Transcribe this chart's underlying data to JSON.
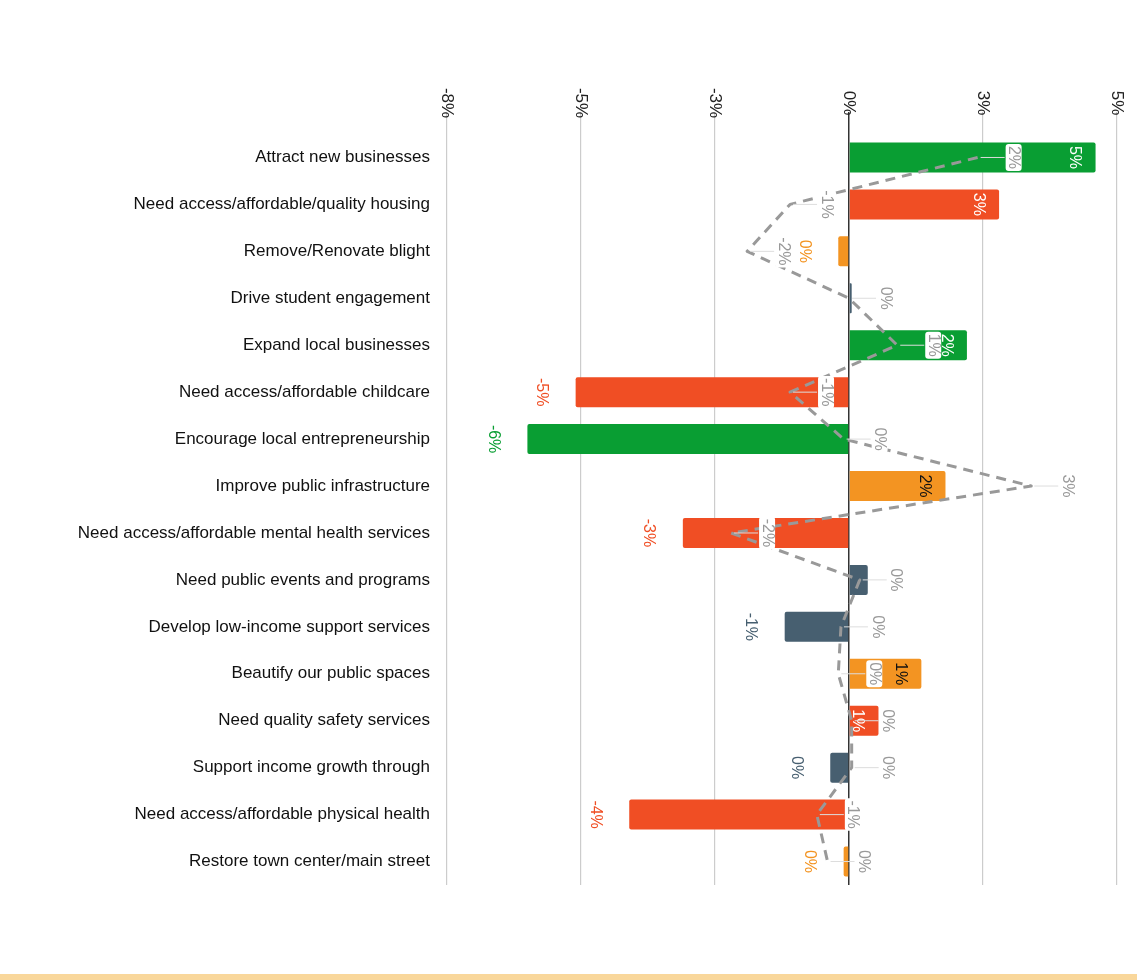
{
  "chart_data": {
    "type": "bar",
    "orientation": "horizontal",
    "categories": [
      "Attract new businesses",
      "Need access/affordable/quality housing",
      "Remove/Renovate blight",
      "Drive student engagement",
      "Expand local businesses",
      "Need access/affordable childcare",
      "Encourage local entrepreneurship",
      "Improve public infrastructure",
      "Need access/affordable mental health services",
      "Need public events and programs",
      "Develop low-income support services",
      "Beautify our public spaces",
      "Need quality safety services",
      "Support income growth through",
      "Need access/affordable physical health",
      "Restore town center/main street"
    ],
    "series": [
      {
        "colors": [
          "#099e33",
          "#f04e24",
          "#f39422",
          "#475f70",
          "#099e33",
          "#f04e24",
          "#099e33",
          "#f39422",
          "#f04e24",
          "#475f70",
          "#475f70",
          "#f39422",
          "#f04e24",
          "#475f70",
          "#f04e24",
          "#f39422"
        ],
        "values": [
          4.6,
          2.8,
          -0.2,
          0.05,
          2.2,
          -5.1,
          -6.0,
          1.8,
          -3.1,
          0.35,
          -1.2,
          1.35,
          0.55,
          -0.35,
          -4.1,
          -0.1
        ],
        "value_labels": [
          "5%",
          "3%",
          "0%",
          null,
          "2%",
          "-5%",
          "-6%",
          "2%",
          "-3%",
          null,
          "-1%",
          "1%",
          "1%",
          "0%",
          "-4%",
          "0%"
        ]
      },
      {
        "type": "line",
        "color": "#999999",
        "values": [
          2.4,
          -1.1,
          -1.9,
          0,
          0.9,
          -1.1,
          -0.1,
          3.4,
          -2.2,
          0.2,
          -0.15,
          -0.2,
          0.05,
          0.05,
          -0.6,
          -0.4
        ],
        "value_labels": [
          "2%",
          "-1%",
          "-2%",
          "0%",
          "1%",
          "-1%",
          "0%",
          "3%",
          "-2%",
          "0%",
          "0%",
          "0%",
          "0%",
          "0%",
          "-1%",
          "0%"
        ]
      }
    ],
    "xlim": [
      -7.5,
      5
    ],
    "xticks": [
      {
        "value": -7.5,
        "label": "-8%"
      },
      {
        "value": -5,
        "label": "-5%"
      },
      {
        "value": -2.5,
        "label": "-3%"
      },
      {
        "value": 0,
        "label": "0%"
      },
      {
        "value": 2.5,
        "label": "3%"
      },
      {
        "value": 5,
        "label": "5%"
      }
    ],
    "grid": "x",
    "legend": false,
    "line_style": "dashed",
    "marker": "none"
  }
}
